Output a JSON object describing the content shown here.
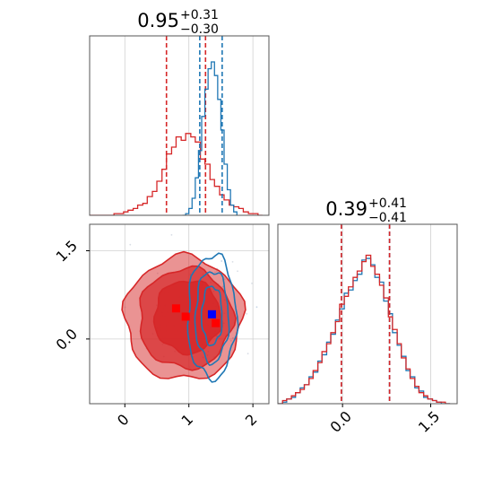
{
  "chart_data": {
    "type": "corner",
    "parameters": [
      {
        "title_value": "0.95",
        "title_plus": "+0.31",
        "title_minus": "−0.30",
        "tick_values": [
          0,
          1,
          2
        ],
        "tick_labels": [
          "0",
          "1",
          "2"
        ],
        "range": [
          -0.55,
          2.25
        ]
      },
      {
        "title_value": "0.39",
        "title_plus": "+0.41",
        "title_minus": "−0.41",
        "tick_values": [
          0.0,
          1.5
        ],
        "tick_labels": [
          "0.0",
          "1.5"
        ],
        "range": [
          -1.1,
          1.95
        ]
      }
    ],
    "colors": {
      "red": "#d62728",
      "blue": "#1f77b4",
      "marker_blue": "#0000ff",
      "marker_red": "#ff0000"
    },
    "grid": true,
    "series": [
      {
        "color": "red",
        "quantiles_param1": [
          0.65,
          1.26
        ],
        "quantiles_param2": [
          -0.02,
          0.8
        ],
        "hist_param1": [
          [
            -0.55,
            0
          ],
          [
            -0.48,
            0
          ],
          [
            -0.4,
            0
          ],
          [
            -0.32,
            0
          ],
          [
            -0.25,
            0
          ],
          [
            -0.17,
            0.01
          ],
          [
            -0.1,
            0.01
          ],
          [
            -0.02,
            0.02
          ],
          [
            0.05,
            0.03
          ],
          [
            0.13,
            0.04
          ],
          [
            0.2,
            0.06
          ],
          [
            0.28,
            0.07
          ],
          [
            0.35,
            0.11
          ],
          [
            0.43,
            0.14
          ],
          [
            0.5,
            0.2
          ],
          [
            0.58,
            0.27
          ],
          [
            0.65,
            0.36
          ],
          [
            0.73,
            0.4
          ],
          [
            0.8,
            0.46
          ],
          [
            0.88,
            0.44
          ],
          [
            0.95,
            0.48
          ],
          [
            1.03,
            0.46
          ],
          [
            1.1,
            0.43
          ],
          [
            1.18,
            0.33
          ],
          [
            1.25,
            0.3
          ],
          [
            1.33,
            0.21
          ],
          [
            1.4,
            0.17
          ],
          [
            1.48,
            0.12
          ],
          [
            1.55,
            0.09
          ],
          [
            1.63,
            0.06
          ],
          [
            1.7,
            0.05
          ],
          [
            1.78,
            0.04
          ],
          [
            1.85,
            0.02
          ],
          [
            1.93,
            0.01
          ],
          [
            2.0,
            0.01
          ],
          [
            2.08,
            0
          ],
          [
            2.15,
            0
          ]
        ],
        "hist_param2": [
          [
            -1.1,
            0
          ],
          [
            -1.02,
            0.02
          ],
          [
            -0.95,
            0.03
          ],
          [
            -0.87,
            0.05
          ],
          [
            -0.8,
            0.07
          ],
          [
            -0.72,
            0.09
          ],
          [
            -0.65,
            0.12
          ],
          [
            -0.57,
            0.16
          ],
          [
            -0.5,
            0.21
          ],
          [
            -0.42,
            0.26
          ],
          [
            -0.35,
            0.33
          ],
          [
            -0.27,
            0.38
          ],
          [
            -0.2,
            0.45
          ],
          [
            -0.12,
            0.52
          ],
          [
            -0.05,
            0.63
          ],
          [
            0.03,
            0.68
          ],
          [
            0.1,
            0.74
          ],
          [
            0.18,
            0.8
          ],
          [
            0.25,
            0.84
          ],
          [
            0.33,
            0.9
          ],
          [
            0.4,
            0.94
          ],
          [
            0.48,
            0.87
          ],
          [
            0.55,
            0.82
          ],
          [
            0.63,
            0.75
          ],
          [
            0.7,
            0.67
          ],
          [
            0.78,
            0.55
          ],
          [
            0.85,
            0.47
          ],
          [
            0.93,
            0.38
          ],
          [
            1.0,
            0.29
          ],
          [
            1.08,
            0.22
          ],
          [
            1.15,
            0.16
          ],
          [
            1.23,
            0.11
          ],
          [
            1.3,
            0.07
          ],
          [
            1.38,
            0.05
          ],
          [
            1.45,
            0.03
          ],
          [
            1.53,
            0.02
          ],
          [
            1.6,
            0.01
          ],
          [
            1.68,
            0.01
          ],
          [
            1.75,
            0
          ],
          [
            1.83,
            0
          ]
        ]
      },
      {
        "color": "blue",
        "quantiles_param1": [
          1.17,
          1.52
        ],
        "quantiles_param2": [
          -0.02,
          0.8
        ],
        "hist_param1": [
          [
            0.9,
            0
          ],
          [
            0.95,
            0.01
          ],
          [
            1.0,
            0.04
          ],
          [
            1.05,
            0.1
          ],
          [
            1.1,
            0.22
          ],
          [
            1.15,
            0.38
          ],
          [
            1.2,
            0.58
          ],
          [
            1.25,
            0.74
          ],
          [
            1.3,
            0.86
          ],
          [
            1.35,
            0.9
          ],
          [
            1.4,
            0.82
          ],
          [
            1.45,
            0.68
          ],
          [
            1.5,
            0.5
          ],
          [
            1.55,
            0.3
          ],
          [
            1.6,
            0.15
          ],
          [
            1.65,
            0.06
          ],
          [
            1.7,
            0.02
          ],
          [
            1.75,
            0
          ]
        ],
        "hist_param2": [
          [
            -1.1,
            0
          ],
          [
            -1.02,
            0.01
          ],
          [
            -0.95,
            0.03
          ],
          [
            -0.87,
            0.04
          ],
          [
            -0.8,
            0.07
          ],
          [
            -0.72,
            0.1
          ],
          [
            -0.65,
            0.12
          ],
          [
            -0.57,
            0.17
          ],
          [
            -0.5,
            0.2
          ],
          [
            -0.42,
            0.27
          ],
          [
            -0.35,
            0.31
          ],
          [
            -0.27,
            0.39
          ],
          [
            -0.2,
            0.44
          ],
          [
            -0.12,
            0.53
          ],
          [
            -0.05,
            0.6
          ],
          [
            0.03,
            0.7
          ],
          [
            0.1,
            0.72
          ],
          [
            0.18,
            0.78
          ],
          [
            0.25,
            0.82
          ],
          [
            0.33,
            0.91
          ],
          [
            0.4,
            0.92
          ],
          [
            0.48,
            0.88
          ],
          [
            0.55,
            0.8
          ],
          [
            0.63,
            0.77
          ],
          [
            0.7,
            0.65
          ],
          [
            0.78,
            0.57
          ],
          [
            0.85,
            0.45
          ],
          [
            0.93,
            0.37
          ],
          [
            1.0,
            0.3
          ],
          [
            1.08,
            0.21
          ],
          [
            1.15,
            0.17
          ],
          [
            1.23,
            0.1
          ],
          [
            1.3,
            0.08
          ],
          [
            1.38,
            0.04
          ],
          [
            1.45,
            0.03
          ],
          [
            1.53,
            0.02
          ],
          [
            1.6,
            0.01
          ],
          [
            1.68,
            0
          ],
          [
            1.75,
            0
          ],
          [
            1.83,
            0
          ]
        ]
      }
    ],
    "markers": [
      {
        "color": "marker_red",
        "x": 0.8,
        "y": 0.52
      },
      {
        "color": "marker_red",
        "x": 0.95,
        "y": 0.38
      },
      {
        "color": "marker_red",
        "x": 1.42,
        "y": 0.27
      },
      {
        "color": "marker_blue",
        "x": 1.36,
        "y": 0.42
      }
    ],
    "contours_red": [
      {
        "cx": 0.92,
        "cy": 0.35,
        "rx": 0.92,
        "ry": 1.05,
        "opacity": 0.5
      },
      {
        "cx": 0.95,
        "cy": 0.35,
        "rx": 0.73,
        "ry": 0.85,
        "opacity": 0.7
      },
      {
        "cx": 0.98,
        "cy": 0.38,
        "rx": 0.52,
        "ry": 0.62,
        "opacity": 0.85
      }
    ],
    "contours_blue": [
      {
        "cx": 1.36,
        "cy": 0.38,
        "rx": 0.38,
        "ry": 1.05
      },
      {
        "cx": 1.36,
        "cy": 0.38,
        "rx": 0.26,
        "ry": 0.78
      },
      {
        "cx": 1.36,
        "cy": 0.4,
        "rx": 0.16,
        "ry": 0.5
      }
    ]
  }
}
